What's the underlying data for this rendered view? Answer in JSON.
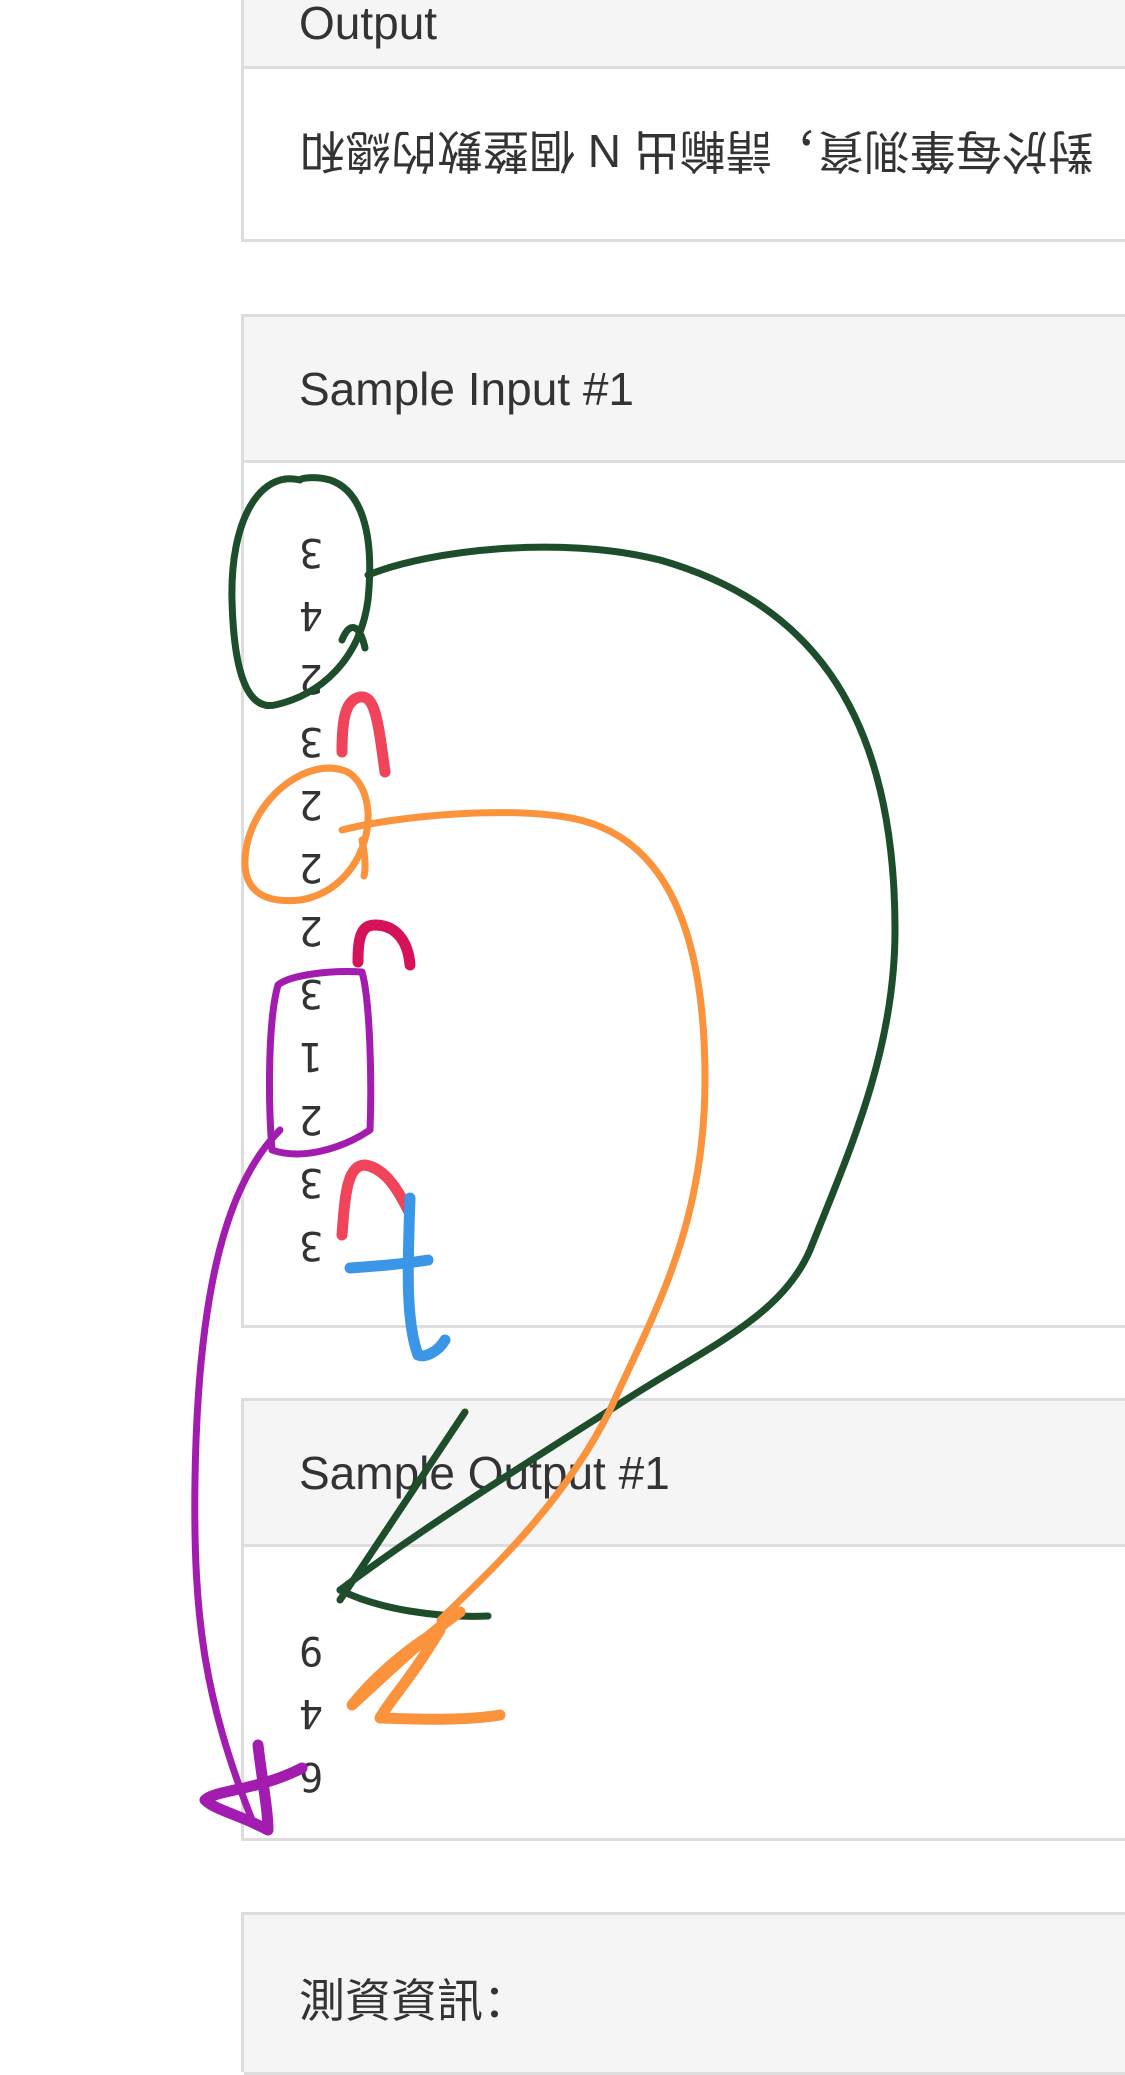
{
  "output_panel": {
    "heading": "Output",
    "description": "對於每筆測資，請輸出 N 個整數的總和"
  },
  "sample_input": {
    "heading": "Sample Input #1",
    "lines": [
      "3",
      "4",
      "2",
      "3",
      "2",
      "2",
      "2",
      "3",
      "1",
      "2",
      "3",
      "3"
    ]
  },
  "sample_output": {
    "heading": "Sample Output #1",
    "lines": [
      "9",
      "4",
      "6"
    ]
  },
  "info_panel": {
    "heading": "測資資訊："
  },
  "annotations": {
    "labels": [
      "n",
      "n",
      "n",
      "t"
    ],
    "colors": {
      "dark_green": "#1e4d2b",
      "orange": "#fb923c",
      "purple": "#a21caf",
      "red": "#ef4459",
      "crimson": "#d6125b",
      "blue": "#3b96e8"
    }
  }
}
